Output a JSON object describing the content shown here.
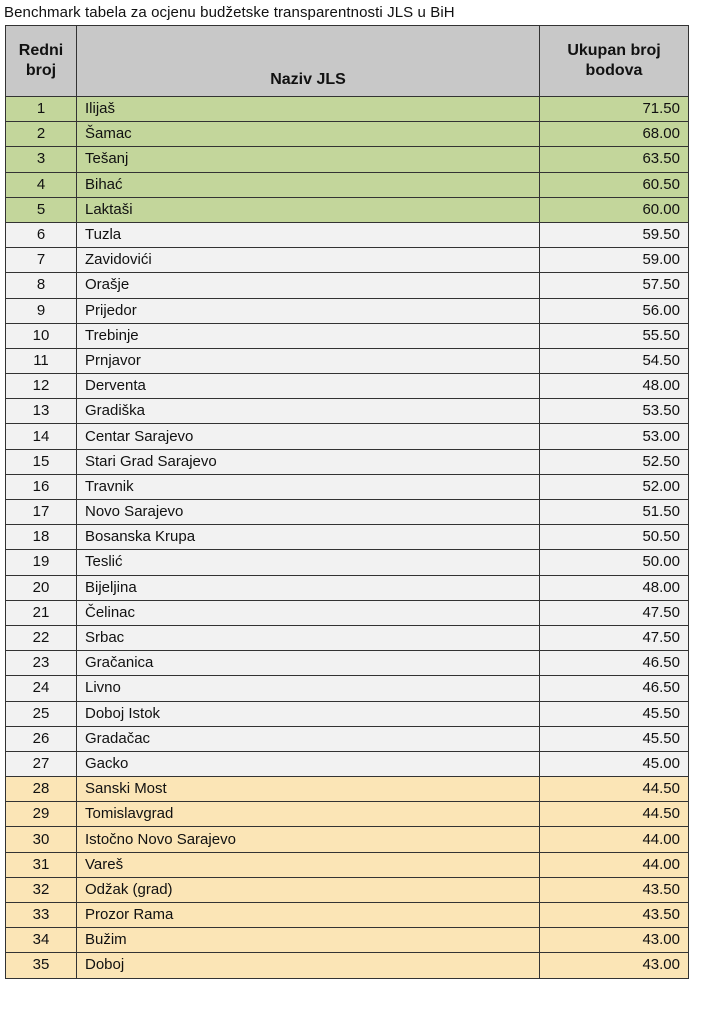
{
  "title": "Benchmark tabela za ocjenu budžetske transparentnosti JLS u BiH",
  "headers": {
    "rank": [
      "Redni",
      "broj"
    ],
    "name": "Naziv JLS",
    "score": [
      "Ukupan broj",
      "bodova"
    ]
  },
  "colors": {
    "header": "#c8c8c8",
    "top_group": "#c3d69b",
    "middle_group": "#f2f2f2",
    "bottom_group": "#fbe5b6"
  },
  "rows": [
    {
      "rank": "1",
      "name": "Ilijaš",
      "score": "71.50",
      "group": "green"
    },
    {
      "rank": "2",
      "name": "Šamac",
      "score": "68.00",
      "group": "green"
    },
    {
      "rank": "3",
      "name": "Tešanj",
      "score": "63.50",
      "group": "green"
    },
    {
      "rank": "4",
      "name": "Bihać",
      "score": "60.50",
      "group": "green"
    },
    {
      "rank": "5",
      "name": "Laktaši",
      "score": "60.00",
      "group": "green"
    },
    {
      "rank": "6",
      "name": "Tuzla",
      "score": "59.50",
      "group": "gray"
    },
    {
      "rank": "7",
      "name": "Zavidovići",
      "score": "59.00",
      "group": "gray"
    },
    {
      "rank": "8",
      "name": "Orašje",
      "score": "57.50",
      "group": "gray"
    },
    {
      "rank": "9",
      "name": "Prijedor",
      "score": "56.00",
      "group": "gray"
    },
    {
      "rank": "10",
      "name": "Trebinje",
      "score": "55.50",
      "group": "gray"
    },
    {
      "rank": "11",
      "name": "Prnjavor",
      "score": "54.50",
      "group": "gray"
    },
    {
      "rank": "12",
      "name": "Derventa",
      "score": "48.00",
      "group": "gray"
    },
    {
      "rank": "13",
      "name": "Gradiška",
      "score": "53.50",
      "group": "gray"
    },
    {
      "rank": "14",
      "name": "Centar Sarajevo",
      "score": "53.00",
      "group": "gray"
    },
    {
      "rank": "15",
      "name": "Stari Grad Sarajevo",
      "score": "52.50",
      "group": "gray"
    },
    {
      "rank": "16",
      "name": "Travnik",
      "score": "52.00",
      "group": "gray"
    },
    {
      "rank": "17",
      "name": "Novo Sarajevo",
      "score": "51.50",
      "group": "gray"
    },
    {
      "rank": "18",
      "name": "Bosanska Krupa",
      "score": "50.50",
      "group": "gray"
    },
    {
      "rank": "19",
      "name": "Teslić",
      "score": "50.00",
      "group": "gray"
    },
    {
      "rank": "20",
      "name": "Bijeljina",
      "score": "48.00",
      "group": "gray"
    },
    {
      "rank": "21",
      "name": "Čelinac",
      "score": "47.50",
      "group": "gray"
    },
    {
      "rank": "22",
      "name": "Srbac",
      "score": "47.50",
      "group": "gray"
    },
    {
      "rank": "23",
      "name": "Gračanica",
      "score": "46.50",
      "group": "gray"
    },
    {
      "rank": "24",
      "name": "Livno",
      "score": "46.50",
      "group": "gray"
    },
    {
      "rank": "25",
      "name": "Doboj Istok",
      "score": "45.50",
      "group": "gray"
    },
    {
      "rank": "26",
      "name": "Gradačac",
      "score": "45.50",
      "group": "gray"
    },
    {
      "rank": "27",
      "name": "Gacko",
      "score": "45.00",
      "group": "gray"
    },
    {
      "rank": "28",
      "name": "Sanski Most",
      "score": "44.50",
      "group": "yellow"
    },
    {
      "rank": "29",
      "name": "Tomislavgrad",
      "score": "44.50",
      "group": "yellow"
    },
    {
      "rank": "30",
      "name": "Istočno Novo Sarajevo",
      "score": "44.00",
      "group": "yellow"
    },
    {
      "rank": "31",
      "name": "Vareš",
      "score": "44.00",
      "group": "yellow"
    },
    {
      "rank": "32",
      "name": "Odžak (grad)",
      "score": "43.50",
      "group": "yellow"
    },
    {
      "rank": "33",
      "name": "Prozor Rama",
      "score": "43.50",
      "group": "yellow"
    },
    {
      "rank": "34",
      "name": "Bužim",
      "score": "43.00",
      "group": "yellow"
    },
    {
      "rank": "35",
      "name": "Doboj",
      "score": "43.00",
      "group": "yellow"
    }
  ]
}
